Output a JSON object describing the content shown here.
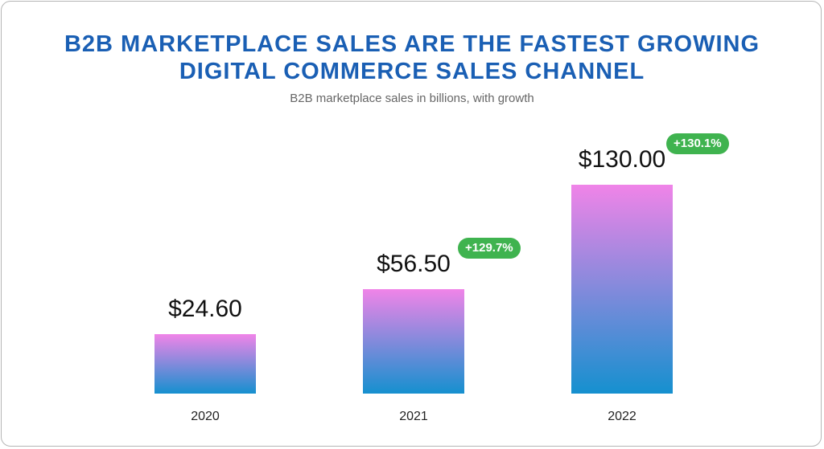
{
  "chart_data": {
    "type": "bar",
    "title": [
      "B2B MARKETPLACE SALES ARE THE FASTEST GROWING",
      "DIGITAL COMMERCE SALES CHANNEL"
    ],
    "subtitle": "B2B marketplace sales in billions, with growth",
    "categories": [
      "2020",
      "2021",
      "2022"
    ],
    "values": [
      24.6,
      56.5,
      130.0
    ],
    "data_labels": [
      "$24.60",
      "$56.50",
      "$130.00"
    ],
    "growth_labels": [
      "",
      "+129.7%",
      "+130.1%"
    ],
    "xlabel": "",
    "ylabel": "",
    "ylim": [
      0,
      130
    ],
    "grid": false,
    "colors": {
      "title": "#1a5fb4",
      "bar_top": "#f084e8",
      "bar_bottom": "#1590cf",
      "badge": "#3fb34f"
    }
  }
}
